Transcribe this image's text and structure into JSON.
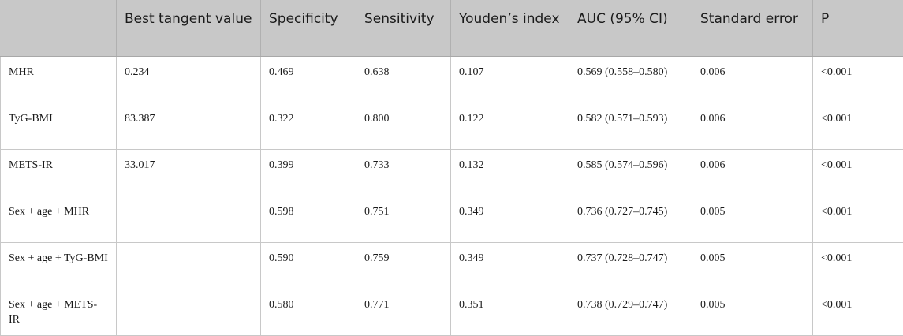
{
  "table": {
    "headers": [
      "",
      "Best tangent value",
      "Specificity",
      "Sensitivity",
      "Youden’s index",
      "AUC (95% CI)",
      "Standard error",
      "P"
    ],
    "rows": [
      [
        "MHR",
        "0.234",
        "0.469",
        "0.638",
        "0.107",
        "0.569 (0.558–0.580)",
        "0.006",
        "<0.001"
      ],
      [
        "TyG-BMI",
        "83.387",
        "0.322",
        "0.800",
        "0.122",
        "0.582 (0.571–0.593)",
        "0.006",
        "<0.001"
      ],
      [
        "METS-IR",
        "33.017",
        "0.399",
        "0.733",
        "0.132",
        "0.585 (0.574–0.596)",
        "0.006",
        "<0.001"
      ],
      [
        "Sex + age + MHR",
        "",
        "0.598",
        "0.751",
        "0.349",
        "0.736 (0.727–0.745)",
        "0.005",
        "<0.001"
      ],
      [
        "Sex + age + TyG-BMI",
        "",
        "0.590",
        "0.759",
        "0.349",
        "0.737 (0.728–0.747)",
        "0.005",
        "<0.001"
      ],
      [
        "Sex + age + METS-IR",
        "",
        "0.580",
        "0.771",
        "0.351",
        "0.738 (0.729–0.747)",
        "0.005",
        "<0.001"
      ]
    ]
  }
}
